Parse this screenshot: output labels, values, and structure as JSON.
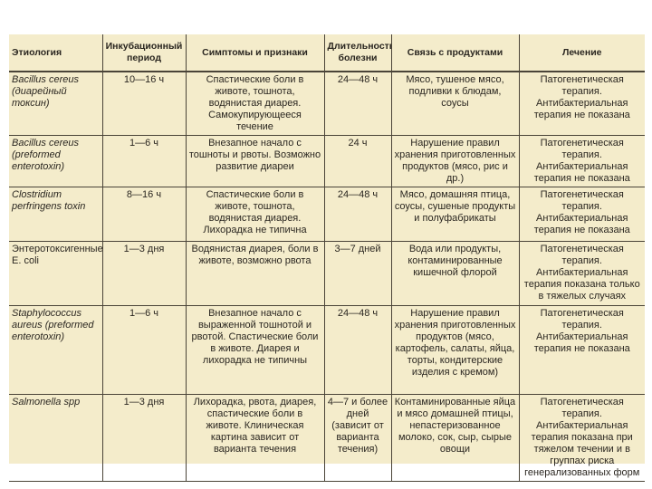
{
  "table": {
    "header": [
      "Этиология",
      "Инкубационный период",
      "Симптомы и признаки",
      "Длительность болезни",
      "Связь с продуктами",
      "Лечение"
    ],
    "rows": [
      [
        "Bacillus cereus (диарейный токсин)",
        "10—16 ч",
        "Спастические боли в животе, тошнота, водянистая диарея. Самокупирующееся течение",
        "24—48 ч",
        "Мясо, тушеное мясо, подливки к блюдам, соусы",
        "Патогенетическая терапия. Антибактериальная терапия не показана"
      ],
      [
        "Bacillus cereus (preformed enterotoxin)",
        "1—6 ч",
        "Внезапное начало с тошноты и рвоты. Возможно развитие диареи",
        "24 ч",
        "Нарушение правил хранения приготовленных продуктов (мясо, рис и др.)",
        "Патогенетическая терапия. Антибактериальная терапия не показана"
      ],
      [
        "Clostridium perfringens toxin",
        "8—16 ч",
        "Спастические боли в животе, тошнота, водянистая диарея. Лихорадка не типична",
        "24—48 ч",
        "Мясо, домашняя птица, соусы, сушеные продукты и полуфабрикаты",
        "Патогенетическая терапия. Антибактериальная терапия не показана"
      ],
      [
        "Энтеротоксигенные E. coli",
        "1—3 дня",
        "Водянистая диарея, боли в животе, возможно рвота",
        "3—7 дней",
        "Вода или продукты, контаминированные кишечной флорой",
        "Патогенетическая терапия. Антибактериальная терапия показана только в тяжелых случаях"
      ],
      [
        "Staphylococcus aureus (preformed enterotoxin)",
        "1—6 ч",
        "Внезапное начало с выраженной тошнотой и рвотой. Спастические боли в животе. Диарея и лихорадка не типичны",
        "24—48 ч",
        "Нарушение правил хранения приготовленных продуктов (мясо, картофель, салаты, яйца, торты, кондитерские изделия с кремом)",
        "Патогенетическая терапия. Антибактериальная терапия не показана"
      ],
      [
        "Salmonella spp",
        "1—3 дня",
        "Лихорадка, рвота, диарея, спастические боли в животе. Клиническая картина зависит от варианта течения",
        "4—7 и более дней (зависит от варианта течения)",
        "Контаминированные яйца и мясо домашней птицы, непастеризованное молоко, сок, сыр, сырые овощи",
        "Патогенетическая терапия. Антибактериальная терапия показана при тяжелом течении и в группах риска генерализованных форм"
      ]
    ]
  }
}
